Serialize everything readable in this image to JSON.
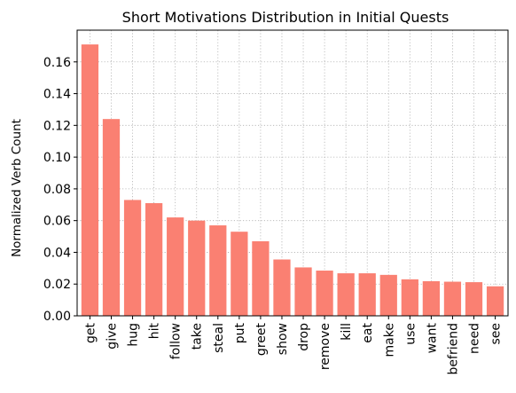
{
  "chart_data": {
    "type": "bar",
    "title": "Short Motivations Distribution in Initial Quests",
    "xlabel": "",
    "ylabel": "Normalized Verb Count",
    "categories": [
      "get",
      "give",
      "hug",
      "hit",
      "follow",
      "take",
      "steal",
      "put",
      "greet",
      "show",
      "drop",
      "remove",
      "kill",
      "eat",
      "make",
      "use",
      "want",
      "befriend",
      "need",
      "see"
    ],
    "values": [
      0.171,
      0.124,
      0.073,
      0.071,
      0.062,
      0.06,
      0.057,
      0.053,
      0.047,
      0.0355,
      0.0305,
      0.0285,
      0.0268,
      0.0268,
      0.0258,
      0.023,
      0.0218,
      0.0215,
      0.0212,
      0.0186
    ],
    "ylim": [
      0,
      0.18
    ],
    "yticks": [
      0.0,
      0.02,
      0.04,
      0.06,
      0.08,
      0.1,
      0.12,
      0.14,
      0.16
    ],
    "ytick_labels": [
      "0.00",
      "0.02",
      "0.04",
      "0.06",
      "0.08",
      "0.10",
      "0.12",
      "0.14",
      "0.16"
    ],
    "grid": true,
    "legend": "none",
    "bar_color": "#fa8072"
  }
}
